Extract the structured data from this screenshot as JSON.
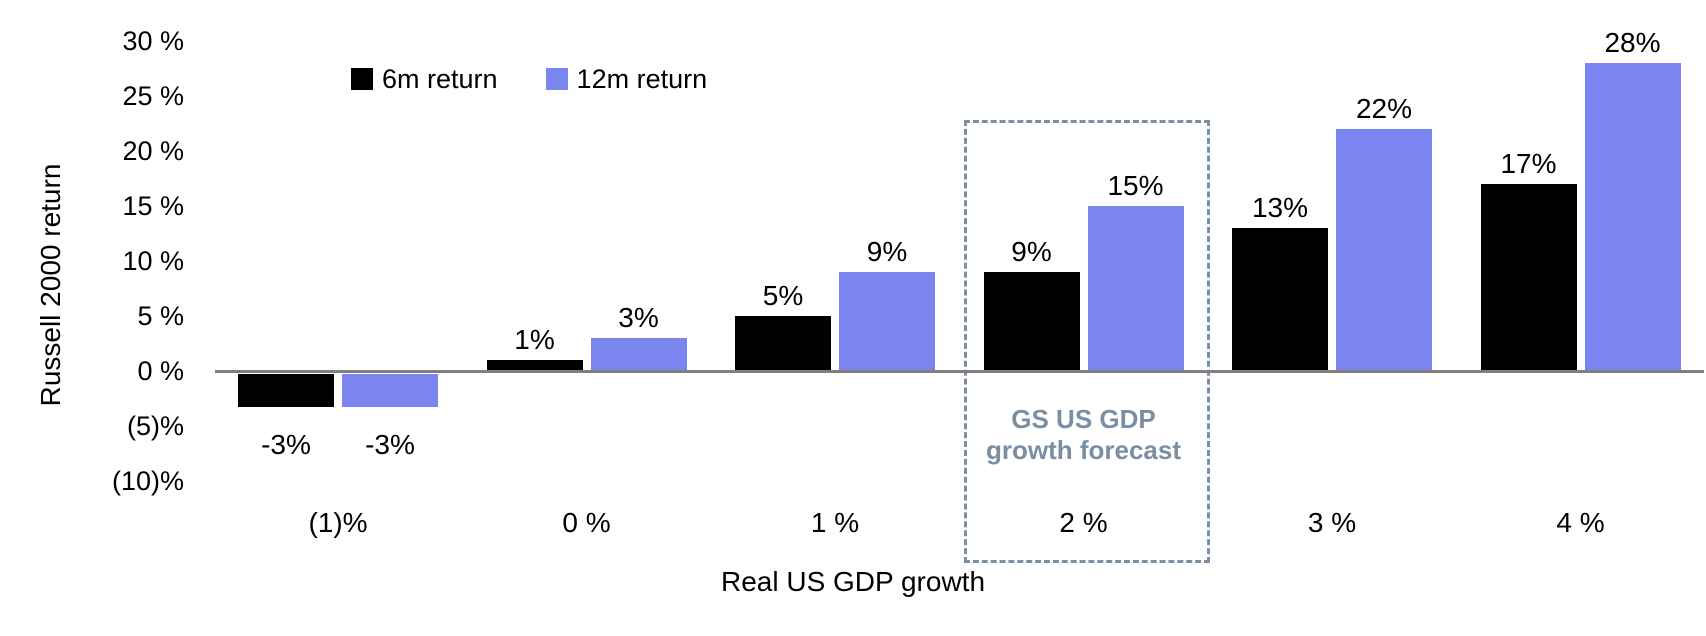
{
  "chart_data": {
    "type": "bar",
    "title": "",
    "xlabel": "Real US GDP growth",
    "ylabel": "Russell 2000 return",
    "categories": [
      "(1)%",
      "0 %",
      "1 %",
      "2 %",
      "3 %",
      "4 %"
    ],
    "series": [
      {
        "name": "6m return",
        "color": "#000000",
        "values": [
          -3,
          1,
          5,
          9,
          13,
          17
        ],
        "labels": [
          "-3%",
          "1%",
          "5%",
          "9%",
          "13%",
          "17%"
        ]
      },
      {
        "name": "12m return",
        "color": "#7B85F0",
        "values": [
          -3,
          3,
          9,
          15,
          22,
          28
        ],
        "labels": [
          "-3%",
          "3%",
          "9%",
          "15%",
          "22%",
          "28%"
        ]
      }
    ],
    "yticks": [
      {
        "value": 30,
        "label": "30 %"
      },
      {
        "value": 25,
        "label": "25 %"
      },
      {
        "value": 20,
        "label": "20 %"
      },
      {
        "value": 15,
        "label": "15 %"
      },
      {
        "value": 10,
        "label": "10 %"
      },
      {
        "value": 5,
        "label": "5 %"
      },
      {
        "value": 0,
        "label": "0 %"
      },
      {
        "value": -5,
        "label": "(5)%"
      },
      {
        "value": -10,
        "label": "(10)%"
      }
    ],
    "ylim": [
      -10,
      30
    ],
    "grid": false,
    "legend_position": "top-left-inside",
    "zero_line_color": "#808080",
    "annotation": {
      "line1": "GS US GDP",
      "line2": "growth forecast",
      "group_index": 3,
      "color": "#7A8FA3",
      "box_style": "dashed"
    }
  }
}
